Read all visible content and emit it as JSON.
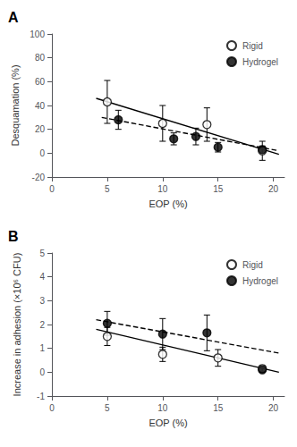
{
  "chart_data": [
    {
      "type": "scatter",
      "title": "A",
      "xlabel": "EOP (%)",
      "ylabel": "Desquamation (%)",
      "xlim": [
        0,
        21
      ],
      "ylim": [
        -20,
        100
      ],
      "xticks": [
        0,
        5,
        10,
        15,
        20
      ],
      "yticks": [
        -20,
        0,
        20,
        40,
        60,
        80,
        100
      ],
      "grid": false,
      "legend": "upper right",
      "series": [
        {
          "name": "Rigid",
          "color": "#000000",
          "marker": "circle_open",
          "line_style": "solid",
          "x": [
            5,
            10,
            14,
            19
          ],
          "values": [
            43,
            25,
            24,
            2
          ],
          "yerr_lo": [
            18,
            15,
            14,
            8
          ],
          "yerr_hi": [
            18,
            15,
            14,
            8
          ],
          "fit": {
            "x": [
              4.0,
              20.5
            ],
            "values": [
              46,
              -1
            ]
          }
        },
        {
          "name": "Hydrogel",
          "color": "#000000",
          "marker": "circle",
          "line_style": "dashed",
          "x": [
            6,
            11,
            13,
            15,
            19
          ],
          "values": [
            28,
            12,
            14,
            5,
            3
          ],
          "yerr_lo": [
            8,
            5,
            7,
            4,
            3
          ],
          "yerr_hi": [
            8,
            5,
            7,
            4,
            3
          ],
          "fit": {
            "x": [
              4.5,
              20.5
            ],
            "values": [
              30,
              2
            ]
          }
        }
      ]
    },
    {
      "type": "scatter",
      "title": "B",
      "xlabel": "EOP (%)",
      "ylabel": "Increase in adhesion (×10⁶ CFU)",
      "xlim": [
        0,
        21
      ],
      "ylim": [
        -1,
        5
      ],
      "xticks": [
        0,
        5,
        10,
        15,
        20
      ],
      "yticks": [
        -1,
        0,
        1,
        2,
        3,
        4,
        5
      ],
      "grid": false,
      "legend": "upper right",
      "series": [
        {
          "name": "Rigid",
          "color": "#000000",
          "marker": "circle_open",
          "line_style": "solid",
          "x": [
            5,
            10,
            15,
            19
          ],
          "values": [
            1.5,
            0.75,
            0.6,
            0.15
          ],
          "yerr_lo": [
            0.38,
            0.3,
            0.35,
            0.12
          ],
          "yerr_hi": [
            0.38,
            0.3,
            0.35,
            0.12
          ],
          "fit": {
            "x": [
              4.0,
              20.5
            ],
            "values": [
              1.8,
              0.0
            ]
          }
        },
        {
          "name": "Hydrogel",
          "color": "#000000",
          "marker": "circle",
          "line_style": "dashed",
          "x": [
            5,
            10,
            14,
            19
          ],
          "values": [
            2.05,
            1.6,
            1.65,
            0.1
          ],
          "yerr_lo": [
            0.5,
            0.65,
            0.75,
            0.1
          ],
          "yerr_hi": [
            0.5,
            0.65,
            0.75,
            0.1
          ],
          "fit": {
            "x": [
              4.0,
              20.5
            ],
            "values": [
              2.2,
              0.8
            ]
          }
        }
      ]
    }
  ]
}
